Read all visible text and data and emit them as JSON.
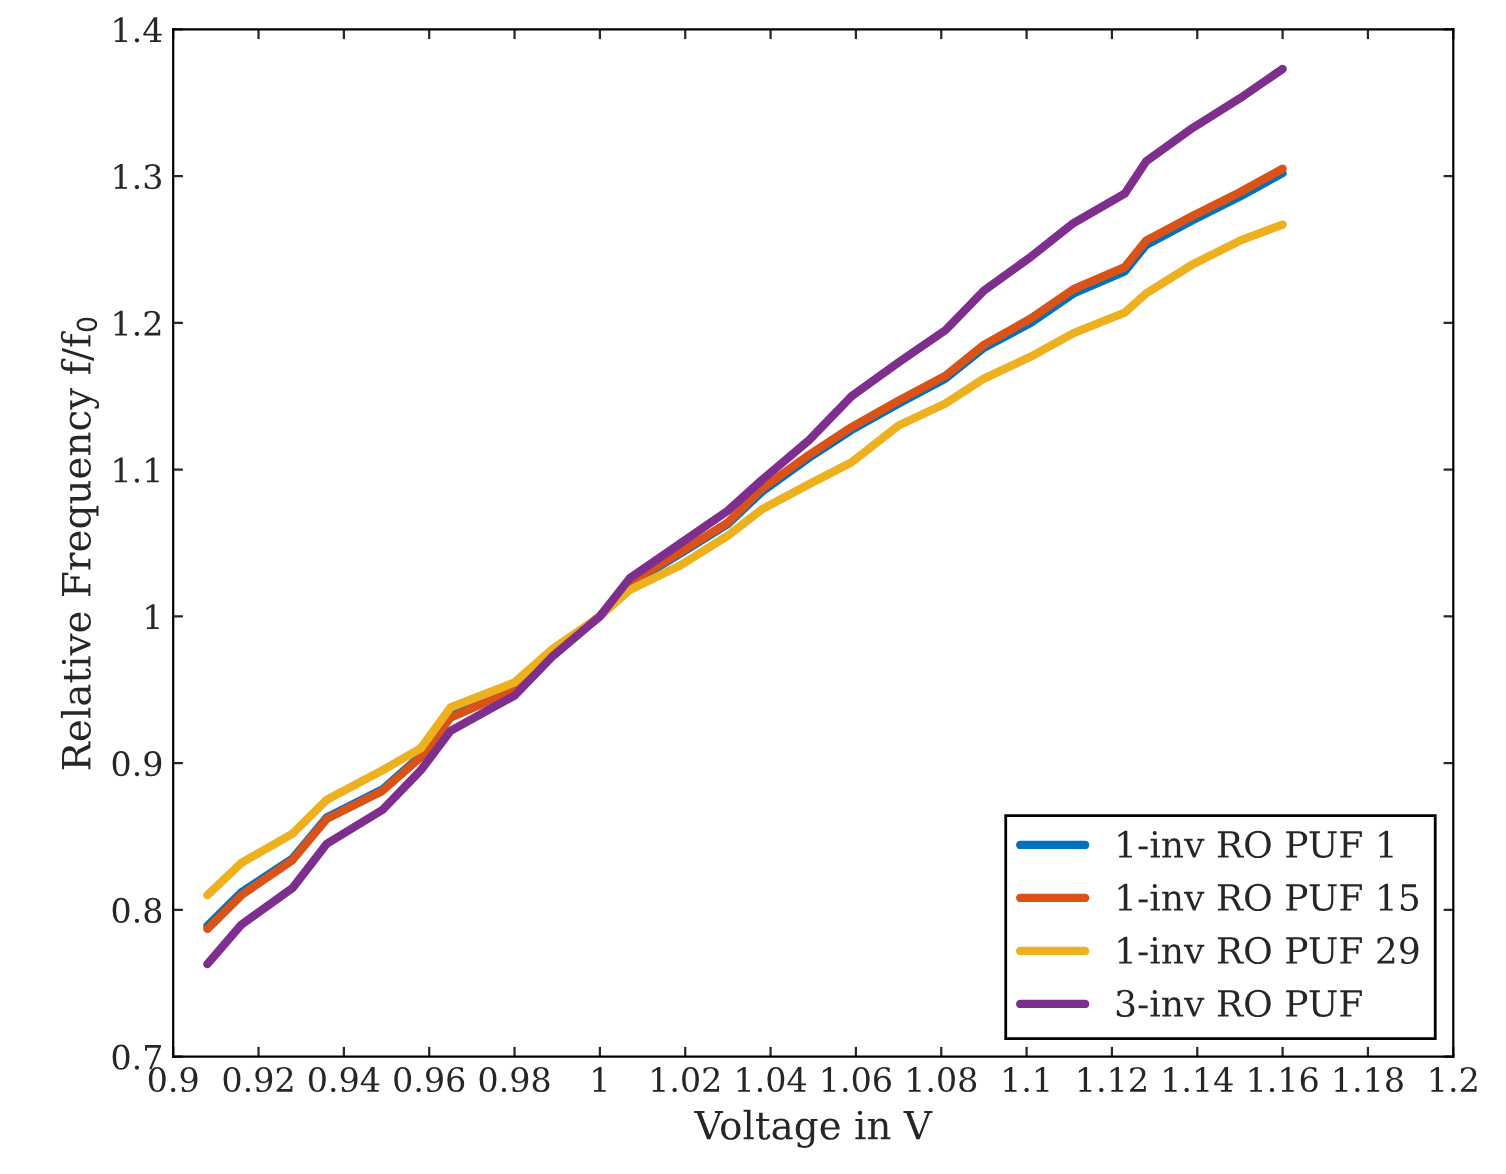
{
  "chart_data": {
    "type": "line",
    "xlabel": "Voltage in V",
    "ylabel": "Relative Frequency f/f$_{0}$",
    "x": [
      0.908,
      0.916,
      0.928,
      0.936,
      0.949,
      0.958,
      0.965,
      0.98,
      0.989,
      1.0,
      1.007,
      1.019,
      1.03,
      1.038,
      1.049,
      1.059,
      1.07,
      1.081,
      1.09,
      1.101,
      1.111,
      1.123,
      1.128,
      1.139,
      1.15,
      1.16
    ],
    "series": [
      {
        "name": "1-inv RO PUF 1",
        "color": "#0072bd",
        "values": [
          0.789,
          0.812,
          0.835,
          0.863,
          0.882,
          0.905,
          0.932,
          0.95,
          0.976,
          1.0,
          1.022,
          1.043,
          1.063,
          1.085,
          1.108,
          1.127,
          1.145,
          1.162,
          1.183,
          1.2,
          1.22,
          1.235,
          1.253,
          1.27,
          1.286,
          1.302
        ]
      },
      {
        "name": "1-inv RO PUF 15",
        "color": "#d95319",
        "values": [
          0.787,
          0.81,
          0.834,
          0.862,
          0.881,
          0.904,
          0.931,
          0.95,
          0.976,
          1.0,
          1.023,
          1.044,
          1.064,
          1.087,
          1.11,
          1.129,
          1.147,
          1.164,
          1.185,
          1.203,
          1.223,
          1.238,
          1.256,
          1.273,
          1.289,
          1.305
        ]
      },
      {
        "name": "1-inv RO PUF 29",
        "color": "#edb120",
        "values": [
          0.81,
          0.832,
          0.852,
          0.875,
          0.895,
          0.91,
          0.938,
          0.955,
          0.978,
          1.0,
          1.018,
          1.035,
          1.055,
          1.073,
          1.09,
          1.105,
          1.13,
          1.145,
          1.162,
          1.177,
          1.193,
          1.207,
          1.22,
          1.24,
          1.256,
          1.267
        ]
      },
      {
        "name": "3-inv RO PUF",
        "color": "#7e2f8e",
        "values": [
          0.763,
          0.79,
          0.815,
          0.845,
          0.868,
          0.895,
          0.922,
          0.946,
          0.973,
          1.0,
          1.026,
          1.05,
          1.072,
          1.093,
          1.12,
          1.15,
          1.173,
          1.195,
          1.222,
          1.245,
          1.268,
          1.288,
          1.31,
          1.333,
          1.353,
          1.373
        ]
      }
    ],
    "xlim": [
      0.9,
      1.2
    ],
    "ylim": [
      0.7,
      1.4
    ],
    "xticks": [
      0.9,
      0.92,
      0.94,
      0.96,
      0.98,
      1,
      1.02,
      1.04,
      1.06,
      1.08,
      1.1,
      1.12,
      1.14,
      1.16,
      1.18,
      1.2
    ],
    "yticks": [
      0.7,
      0.8,
      0.9,
      1,
      1.1,
      1.2,
      1.3,
      1.4
    ],
    "grid": false,
    "legend": "bottom right",
    "marker": "none",
    "line_style": "solid"
  }
}
